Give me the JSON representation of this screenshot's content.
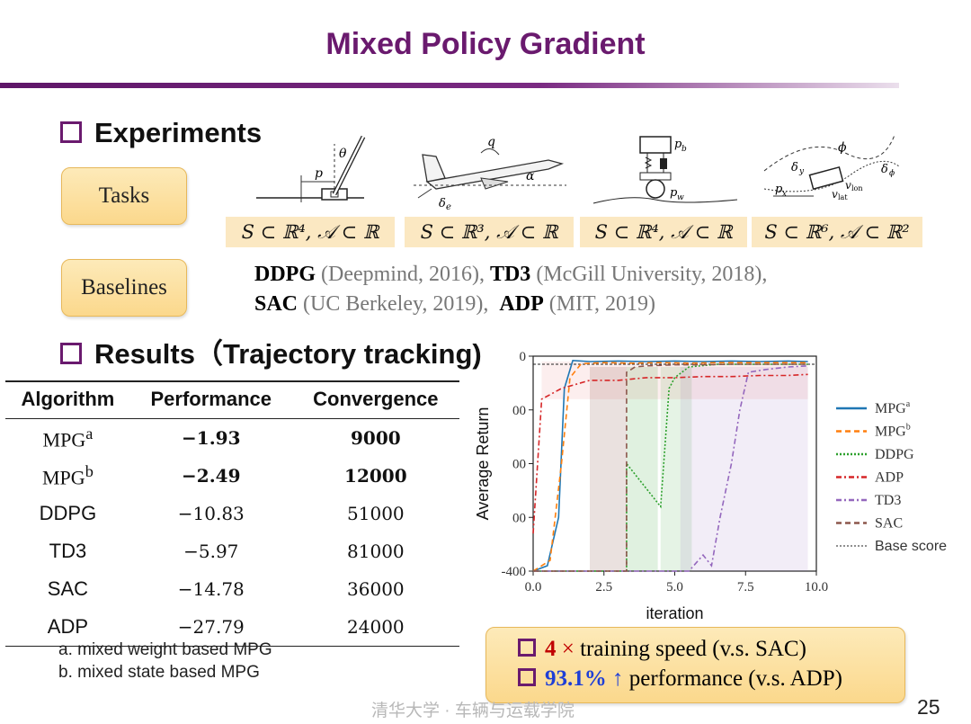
{
  "slide": {
    "title": "Mixed Policy Gradient",
    "page_number": "25",
    "footer": "清华大学 · 车辆与运载学院"
  },
  "experiments": {
    "heading": "Experiments",
    "tasks_label": "Tasks",
    "task_spaces": [
      "S ⊂ ℝ⁴, 𝒜 ⊂ ℝ",
      "S ⊂ ℝ³, 𝒜 ⊂ ℝ",
      "S ⊂ ℝ⁴, 𝒜 ⊂ ℝ",
      "S ⊂ ℝ⁶, 𝒜 ⊂ ℝ²"
    ],
    "baselines_label": "Baselines",
    "baselines_line1": [
      {
        "name": "DDPG",
        "source": " (Deepmind, 2016), "
      },
      {
        "name": "TD3",
        "source": " (McGill University, 2018),"
      }
    ],
    "baselines_line2": [
      {
        "name": "SAC",
        "source": " (UC Berkeley, 2019),  "
      },
      {
        "name": "ADP",
        "source": " (MIT, 2019)"
      }
    ]
  },
  "results": {
    "heading": "Results（Trajectory tracking)",
    "table": {
      "headers": [
        "Algorithm",
        "Performance",
        "Convergence"
      ],
      "rows": [
        {
          "algo": "MPG",
          "sup": "a",
          "performance": "−1.93",
          "convergence": "9000",
          "bold": true
        },
        {
          "algo": "MPG",
          "sup": "b",
          "performance": "−2.49",
          "convergence": "12000",
          "bold": true
        },
        {
          "algo": "DDPG",
          "sup": "",
          "performance": "−10.83",
          "convergence": "51000",
          "bold": false
        },
        {
          "algo": "TD3",
          "sup": "",
          "performance": "−5.97",
          "convergence": "81000",
          "bold": false
        },
        {
          "algo": "SAC",
          "sup": "",
          "performance": "−14.78",
          "convergence": "36000",
          "bold": false
        },
        {
          "algo": "ADP",
          "sup": "",
          "performance": "−27.79",
          "convergence": "24000",
          "bold": false
        }
      ],
      "footnotes": [
        "a. mixed weight based MPG",
        "b. mixed state based MPG"
      ]
    },
    "callout": {
      "line1_value": "4",
      "line1_symbol": "×",
      "line1_text": " training speed (v.s. SAC)",
      "line2_value": "93.1%",
      "line2_symbol": "↑",
      "line2_text": " performance (v.s. ADP)"
    }
  },
  "chart_data": {
    "type": "line",
    "xlabel": "iteration",
    "ylabel": "Average Return",
    "xlim": [
      0,
      10
    ],
    "ylim": [
      -400,
      0
    ],
    "xticks": [
      "0.0",
      "2.5",
      "5.0",
      "7.5",
      "10.0"
    ],
    "yticks": [
      "0",
      "00",
      "00",
      "00",
      "-400"
    ],
    "legend_position": "right, outside",
    "base_score": -15,
    "series": [
      {
        "name": "MPG",
        "sup": "a",
        "color": "#1f77b4",
        "style": "solid",
        "x": [
          0,
          0.5,
          0.9,
          1.1,
          1.4,
          2,
          3,
          4,
          5,
          6,
          7,
          8,
          9,
          9.7
        ],
        "y": [
          -400,
          -390,
          -300,
          -60,
          -8,
          -10,
          -9,
          -10,
          -9,
          -10,
          -9,
          -10,
          -9,
          -10
        ]
      },
      {
        "name": "MPG",
        "sup": "b",
        "color": "#ff7f0e",
        "style": "dashed",
        "x": [
          0,
          0.6,
          1.0,
          1.3,
          1.7,
          2.5,
          3.5,
          4.5,
          5.5,
          6.5,
          7.5,
          8.5,
          9.7
        ],
        "y": [
          -400,
          -380,
          -200,
          -40,
          -14,
          -12,
          -13,
          -12,
          -13,
          -12,
          -12,
          -12,
          -12
        ]
      },
      {
        "name": "DDPG",
        "sup": "",
        "color": "#2ca02c",
        "style": "dotted",
        "x": [
          0,
          0.5,
          1,
          1.8,
          3.3,
          3.3,
          4.5,
          4.8,
          5.0,
          5.5,
          6.5,
          7.5,
          8.5,
          9.7
        ],
        "y": [
          -400,
          -400,
          -400,
          -400,
          -400,
          -200,
          -280,
          -60,
          -40,
          -20,
          -15,
          -15,
          -15,
          -15
        ]
      },
      {
        "name": "ADP",
        "sup": "",
        "color": "#d62728",
        "style": "dashdot",
        "x": [
          0,
          0.3,
          1,
          2,
          3,
          4,
          5,
          6,
          7,
          8,
          9,
          9.7
        ],
        "y": [
          -330,
          -80,
          -60,
          -45,
          -45,
          -40,
          -40,
          -38,
          -38,
          -36,
          -36,
          -34
        ]
      },
      {
        "name": "TD3",
        "sup": "",
        "color": "#9467bd",
        "style": "dashdot",
        "x": [
          0,
          5.5,
          6.0,
          6.3,
          6.6,
          7.0,
          7.3,
          7.6,
          8.2,
          9.0,
          9.7
        ],
        "y": [
          -400,
          -400,
          -370,
          -390,
          -300,
          -200,
          -100,
          -30,
          -25,
          -20,
          -18
        ]
      },
      {
        "name": "SAC",
        "sup": "",
        "color": "#8c564b",
        "style": "dashed",
        "x": [
          0,
          1.5,
          2.2,
          3.3,
          3.3,
          3.6,
          4.0,
          5.0,
          6.0,
          7.0,
          8.0,
          9.0,
          9.7
        ],
        "y": [
          -400,
          -400,
          -400,
          -400,
          -30,
          -20,
          -18,
          -16,
          -16,
          -15,
          -15,
          -15,
          -15
        ]
      }
    ],
    "legend": [
      {
        "name": "MPG",
        "sup": "a"
      },
      {
        "name": "MPG",
        "sup": "b"
      },
      {
        "name": "DDPG",
        "sup": ""
      },
      {
        "name": "ADP",
        "sup": ""
      },
      {
        "name": "TD3",
        "sup": ""
      },
      {
        "name": "SAC",
        "sup": ""
      },
      {
        "name": "Base score",
        "sup": ""
      }
    ]
  }
}
